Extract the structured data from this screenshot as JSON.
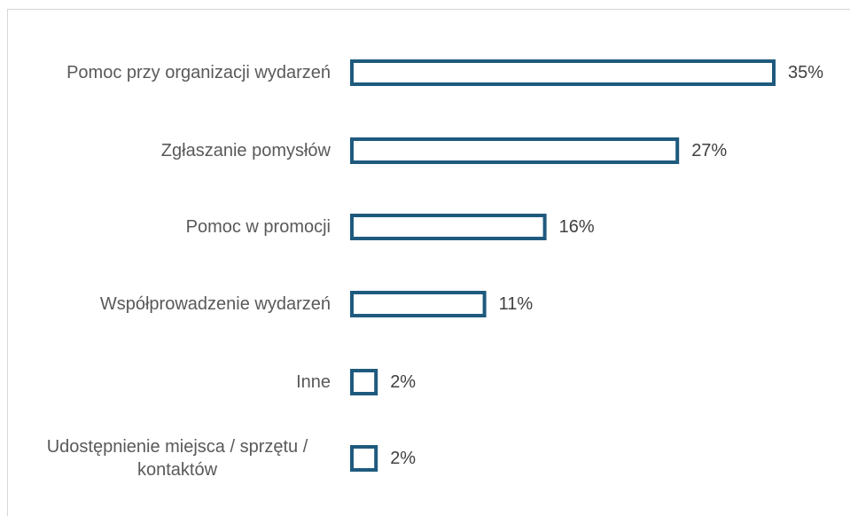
{
  "chart_data": {
    "type": "bar",
    "orientation": "horizontal",
    "title": "",
    "xlabel": "",
    "ylabel": "",
    "categories": [
      "Pomoc przy organizacji wydarzeń",
      "Zgłaszanie pomysłów",
      "Pomoc w promocji",
      "Współprowadzenie wydarzeń",
      "Inne",
      "Udostępnienie miejsca / sprzętu / kontaktów"
    ],
    "category_lines": [
      [
        "Pomoc przy organizacji wydarzeń"
      ],
      [
        "Zgłaszanie pomysłów"
      ],
      [
        "Pomoc w promocji"
      ],
      [
        "Współprowadzenie wydarzeń"
      ],
      [
        "Inne"
      ],
      [
        "Udostępnienie miejsca / sprzętu /",
        "kontaktów"
      ]
    ],
    "values": [
      35,
      27,
      16,
      11,
      2,
      2
    ],
    "value_labels": [
      "35%",
      "27%",
      "16%",
      "11%",
      "2%",
      "2%"
    ],
    "unit": "%",
    "xlim": [
      0,
      35
    ],
    "grid": false,
    "legend": "none",
    "bar_outline_color": "#1f5a7e",
    "bar_fill_color": "#ffffff"
  }
}
